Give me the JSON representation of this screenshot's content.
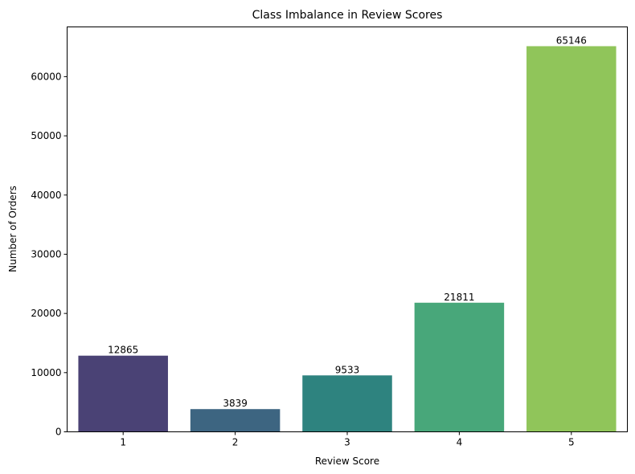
{
  "chart_data": {
    "type": "bar",
    "title": "Class Imbalance in Review Scores",
    "xlabel": "Review Score",
    "ylabel": "Number of Orders",
    "categories": [
      "1",
      "2",
      "3",
      "4",
      "5"
    ],
    "values": [
      12865,
      3839,
      9533,
      21811,
      65146
    ],
    "data_labels": [
      "12865",
      "3839",
      "9533",
      "21811",
      "65146"
    ],
    "colors": [
      "#4a4275",
      "#3d6581",
      "#2e837f",
      "#48a77a",
      "#90c55a"
    ],
    "yticks": [
      0,
      10000,
      20000,
      30000,
      40000,
      50000,
      60000
    ],
    "ytick_labels": [
      "0",
      "10000",
      "20000",
      "30000",
      "40000",
      "50000",
      "60000"
    ],
    "ylim": [
      0,
      68400
    ],
    "grid": false,
    "legend": null
  }
}
